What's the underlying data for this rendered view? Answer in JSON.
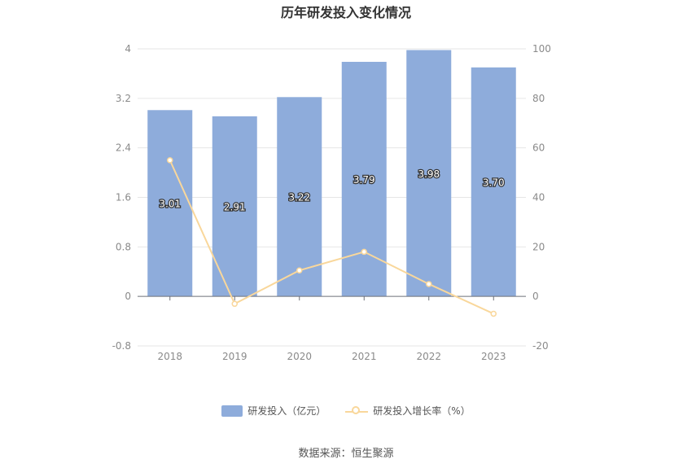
{
  "chart_data": {
    "type": "bar",
    "title": "历年研发投入变化情况",
    "categories": [
      "2018",
      "2019",
      "2020",
      "2021",
      "2022",
      "2023"
    ],
    "series": [
      {
        "name": "研发投入（亿元）",
        "type": "bar",
        "axis": "left",
        "values": [
          3.01,
          2.91,
          3.22,
          3.79,
          3.98,
          3.7
        ],
        "labels": [
          "3.01",
          "2.91",
          "3.22",
          "3.79",
          "3.98",
          "3.70"
        ],
        "color": "#8eacdb"
      },
      {
        "name": "研发投入增长率（%）",
        "type": "line",
        "axis": "right",
        "values": [
          55,
          -3,
          10.5,
          18,
          5,
          -7
        ],
        "color": "#f9d79b"
      }
    ],
    "y_left": {
      "min": -0.8,
      "max": 4,
      "ticks": [
        "4",
        "3.2",
        "2.4",
        "1.6",
        "0.8",
        "0",
        "-0.8"
      ]
    },
    "y_right": {
      "min": -20,
      "max": 100,
      "ticks": [
        "100",
        "80",
        "60",
        "40",
        "20",
        "0",
        "-20"
      ]
    },
    "grid": true,
    "legend_position": "bottom"
  },
  "source_text": "数据来源：恒生聚源"
}
